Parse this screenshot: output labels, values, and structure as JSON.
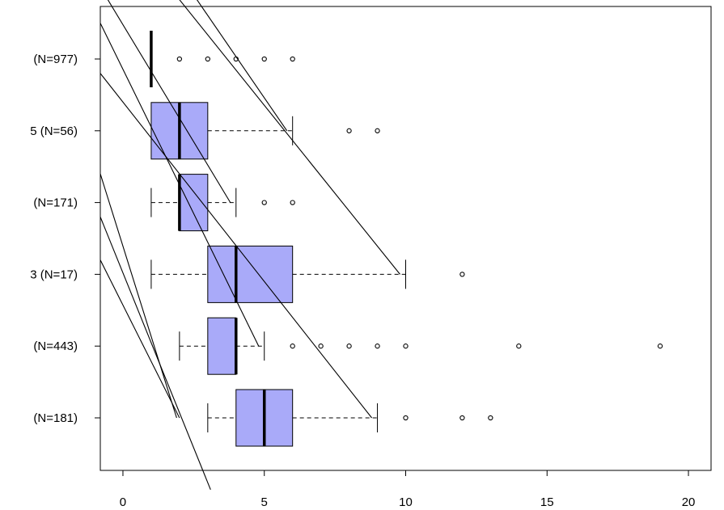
{
  "chart_data": {
    "type": "boxplot",
    "orientation": "horizontal",
    "xlim": [
      -0.8,
      20.8
    ],
    "x_ticks": [
      "0",
      "5",
      "10",
      "15",
      "20"
    ],
    "x_tick_values": [
      0,
      5,
      10,
      15,
      20
    ],
    "box_color": "#a9aaf9",
    "categories": [
      "(N=977)",
      "5 (N=56)",
      "(N=171)",
      "3 (N=17)",
      "(N=443)",
      "(N=181)"
    ],
    "boxes": [
      {
        "label": "(N=977)",
        "whisker_low": 1,
        "q1": 1,
        "median": 1,
        "q3": 1,
        "whisker_high": 1,
        "outliers": [
          2,
          3,
          4,
          5,
          6
        ]
      },
      {
        "label": "5 (N=56)",
        "whisker_low": 1,
        "q1": 1,
        "median": 2,
        "q3": 3,
        "whisker_high": 6,
        "outliers": [
          8,
          9
        ]
      },
      {
        "label": "(N=171)",
        "whisker_low": 1,
        "q1": 2,
        "median": 2,
        "q3": 3,
        "whisker_high": 4,
        "outliers": [
          5,
          6
        ]
      },
      {
        "label": "3 (N=17)",
        "whisker_low": 1,
        "q1": 3,
        "median": 4,
        "q3": 6,
        "whisker_high": 10,
        "outliers": [
          12
        ]
      },
      {
        "label": "(N=443)",
        "whisker_low": 2,
        "q1": 3,
        "median": 4,
        "q3": 4,
        "whisker_high": 5,
        "outliers": [
          6,
          7,
          8,
          9,
          10,
          14,
          19
        ]
      },
      {
        "label": "(N=181)",
        "whisker_low": 3,
        "q1": 4,
        "median": 5,
        "q3": 6,
        "whisker_high": 9,
        "outliers": [
          10,
          12,
          13
        ]
      }
    ],
    "overlay_lines": [
      {
        "from": [
          -0.3,
          8.5
        ],
        "to": [
          5.8,
          5.0
        ]
      },
      {
        "from": [
          -0.8,
          8.2
        ],
        "to": [
          9.8,
          3.0
        ]
      },
      {
        "from": [
          -0.8,
          7.0
        ],
        "to": [
          3.8,
          4.0
        ]
      },
      {
        "from": [
          -0.8,
          6.5
        ],
        "to": [
          4.8,
          2.0
        ]
      },
      {
        "from": [
          -0.8,
          5.8
        ],
        "to": [
          8.8,
          1.0
        ]
      },
      {
        "from": [
          -0.8,
          4.4
        ],
        "to": [
          1.9,
          1.0
        ]
      },
      {
        "from": [
          -0.8,
          3.8
        ],
        "to": [
          3.1,
          0.0
        ]
      },
      {
        "from": [
          -0.8,
          3.2
        ],
        "to": [
          2.0,
          1.0
        ]
      }
    ]
  }
}
